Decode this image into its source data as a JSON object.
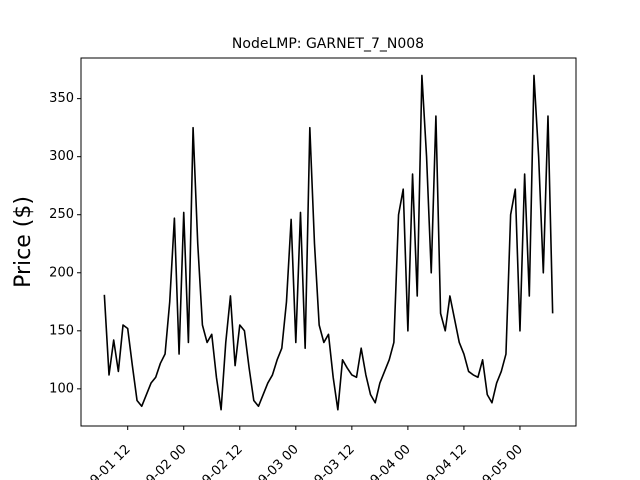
{
  "chart_data": {
    "type": "line",
    "title": "NodeLMP: GARNET_7_N008",
    "ylabel": "Price ($)",
    "x": [
      "09-01 07",
      "09-01 08",
      "09-01 09",
      "09-01 10",
      "09-01 11",
      "09-01 12",
      "09-01 13",
      "09-01 14",
      "09-01 15",
      "09-01 16",
      "09-01 17",
      "09-01 18",
      "09-01 19",
      "09-01 20",
      "09-01 21",
      "09-01 22",
      "09-01 23",
      "09-02 00",
      "09-02 01",
      "09-02 02",
      "09-02 03",
      "09-02 04",
      "09-02 05",
      "09-02 06",
      "09-02 07",
      "09-02 08",
      "09-02 09",
      "09-02 10",
      "09-02 11",
      "09-02 12",
      "09-02 13",
      "09-02 14",
      "09-02 15",
      "09-02 16",
      "09-02 17",
      "09-02 18",
      "09-02 19",
      "09-02 20",
      "09-02 21",
      "09-02 22",
      "09-02 23",
      "09-03 00",
      "09-03 01",
      "09-03 02",
      "09-03 03",
      "09-03 04",
      "09-03 05",
      "09-03 06",
      "09-03 07",
      "09-03 08",
      "09-03 09",
      "09-03 10",
      "09-03 11",
      "09-03 12",
      "09-03 13",
      "09-03 14",
      "09-03 15",
      "09-03 16",
      "09-03 17",
      "09-03 18",
      "09-03 19",
      "09-03 20",
      "09-03 21",
      "09-03 22",
      "09-03 23",
      "09-04 00",
      "09-04 01",
      "09-04 02",
      "09-04 03",
      "09-04 04",
      "09-04 05",
      "09-04 06",
      "09-04 07",
      "09-04 08",
      "09-04 09",
      "09-04 10",
      "09-04 11",
      "09-04 12",
      "09-04 13",
      "09-04 14",
      "09-04 15",
      "09-04 16",
      "09-04 17",
      "09-04 18",
      "09-04 19",
      "09-04 20",
      "09-04 21",
      "09-04 22",
      "09-04 23",
      "09-05 00",
      "09-05 01",
      "09-05 02",
      "09-05 03",
      "09-05 04",
      "09-05 05",
      "09-05 06",
      "09-05 07"
    ],
    "series": [
      {
        "name": "Price",
        "color": "#000000",
        "values": [
          181,
          112,
          142,
          115,
          155,
          152,
          120,
          90,
          85,
          95,
          105,
          110,
          122,
          130,
          175,
          247,
          130,
          252,
          140,
          325,
          225,
          155,
          140,
          147,
          110,
          82,
          140,
          180,
          120,
          155,
          150,
          118,
          90,
          85,
          95,
          105,
          112,
          125,
          135,
          175,
          246,
          140,
          252,
          135,
          325,
          225,
          155,
          140,
          147,
          110,
          82,
          125,
          118,
          112,
          110,
          135,
          112,
          95,
          88,
          105,
          115,
          125,
          140,
          250,
          272,
          150,
          285,
          180,
          370,
          300,
          200,
          335,
          165,
          150,
          180,
          160,
          140,
          130,
          115,
          112,
          110,
          125,
          95,
          88,
          105,
          115,
          130,
          250,
          272,
          150,
          285,
          180,
          370,
          300,
          200,
          335,
          165
        ]
      }
    ],
    "xlim": [
      "09-01 02",
      "09-05 12"
    ],
    "xticks": [
      "09-01 12",
      "09-02 00",
      "09-02 12",
      "09-03 00",
      "09-03 12",
      "09-04 00",
      "09-04 12",
      "09-05 00"
    ],
    "ylim": [
      68,
      385
    ],
    "yticks": [
      100,
      150,
      200,
      250,
      300,
      350
    ]
  }
}
